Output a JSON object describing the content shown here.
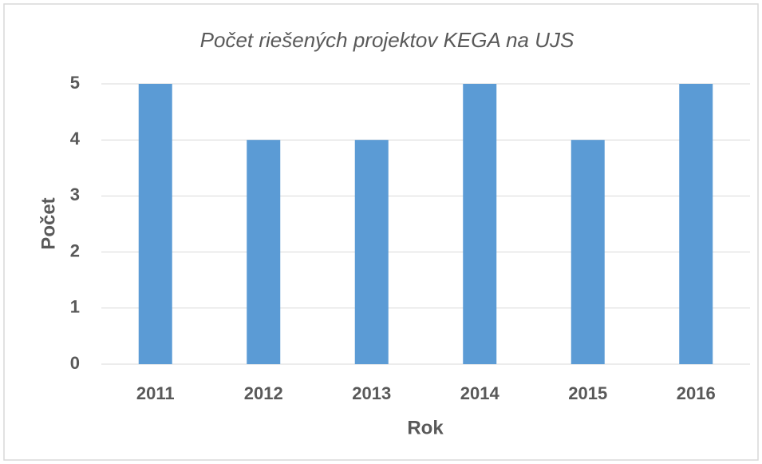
{
  "chart_data": {
    "type": "bar",
    "title": "Počet riešených projektov KEGA na UJS",
    "x_label": "Rok",
    "y_label": "Počet",
    "categories": [
      "2011",
      "2012",
      "2013",
      "2014",
      "2015",
      "2016"
    ],
    "values": [
      5,
      4,
      4,
      5,
      4,
      5
    ],
    "color": "#5b9bd5",
    "ylim": [
      0,
      5
    ],
    "yticks": [
      0,
      1,
      2,
      3,
      4,
      5
    ],
    "grid": true
  }
}
